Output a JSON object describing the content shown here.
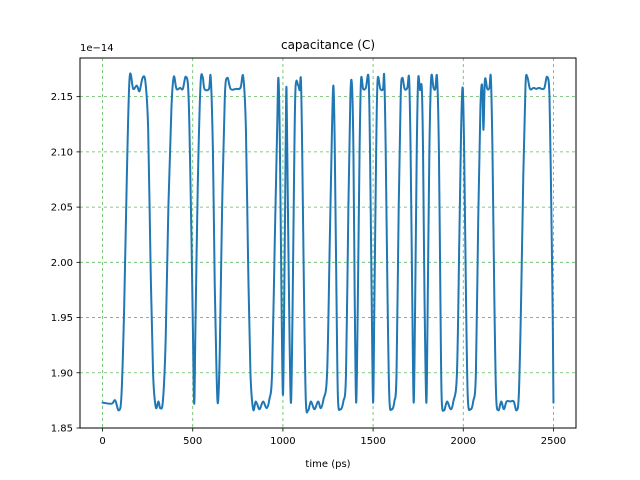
{
  "chart_data": {
    "type": "line",
    "title": "capacitance (C)",
    "xlabel": "time (ps)",
    "ylabel": "",
    "offset_label": "1e−14",
    "xlim": [
      -125,
      2625
    ],
    "ylim": [
      1.85,
      2.185
    ],
    "xticks": [
      0,
      500,
      1000,
      1500,
      2000,
      2500
    ],
    "xtick_labels": [
      "0",
      "500",
      "1000",
      "1500",
      "2000",
      "2500"
    ],
    "yticks": [
      1.85,
      1.9,
      1.95,
      2.0,
      2.05,
      2.1,
      2.15
    ],
    "ytick_labels": [
      "1.85",
      "1.90",
      "1.95",
      "2.00",
      "2.05",
      "2.10",
      "2.15"
    ],
    "grid": true,
    "grid_color": "#2ca02c",
    "line_color": "#1f77b4",
    "series": [
      {
        "values": [
          [
            0,
            1.873
          ],
          [
            50,
            1.872
          ],
          [
            70,
            1.875
          ],
          [
            90,
            1.866
          ],
          [
            105,
            1.88
          ],
          [
            120,
            1.96
          ],
          [
            135,
            2.08
          ],
          [
            150,
            2.167
          ],
          [
            170,
            2.157
          ],
          [
            190,
            2.16
          ],
          [
            205,
            2.155
          ],
          [
            222,
            2.167
          ],
          [
            238,
            2.163
          ],
          [
            253,
            2.12
          ],
          [
            266,
            2.0
          ],
          [
            280,
            1.9
          ],
          [
            295,
            1.869
          ],
          [
            310,
            1.874
          ],
          [
            320,
            1.868
          ],
          [
            335,
            1.875
          ],
          [
            350,
            1.93
          ],
          [
            365,
            2.05
          ],
          [
            382,
            2.14
          ],
          [
            395,
            2.168
          ],
          [
            410,
            2.157
          ],
          [
            430,
            2.158
          ],
          [
            445,
            2.157
          ],
          [
            462,
            2.168
          ],
          [
            477,
            2.15
          ],
          [
            490,
            2.05
          ],
          [
            500,
            1.95
          ],
          [
            508,
            1.872
          ],
          [
            515,
            1.94
          ],
          [
            528,
            2.07
          ],
          [
            543,
            2.16
          ],
          [
            555,
            2.168
          ],
          [
            565,
            2.157
          ],
          [
            590,
            2.157
          ],
          [
            600,
            2.167
          ],
          [
            612,
            2.1
          ],
          [
            622,
            1.98
          ],
          [
            632,
            1.9
          ],
          [
            640,
            1.873
          ],
          [
            650,
            1.92
          ],
          [
            663,
            2.05
          ],
          [
            678,
            2.15
          ],
          [
            692,
            2.167
          ],
          [
            710,
            2.157
          ],
          [
            740,
            2.157
          ],
          [
            765,
            2.158
          ],
          [
            780,
            2.168
          ],
          [
            795,
            2.12
          ],
          [
            807,
            2.0
          ],
          [
            820,
            1.9
          ],
          [
            835,
            1.867
          ],
          [
            850,
            1.874
          ],
          [
            870,
            1.867
          ],
          [
            890,
            1.874
          ],
          [
            910,
            1.868
          ],
          [
            925,
            1.876
          ],
          [
            940,
            1.9
          ],
          [
            955,
            2.02
          ],
          [
            968,
            2.12
          ],
          [
            975,
            2.167
          ],
          [
            983,
            2.11
          ],
          [
            992,
            1.97
          ],
          [
            1000,
            1.88
          ],
          [
            1007,
            1.96
          ],
          [
            1015,
            2.1
          ],
          [
            1020,
            2.158
          ],
          [
            1027,
            2.06
          ],
          [
            1037,
            1.93
          ],
          [
            1045,
            1.873
          ],
          [
            1053,
            1.95
          ],
          [
            1062,
            2.08
          ],
          [
            1070,
            2.158
          ],
          [
            1085,
            2.16
          ],
          [
            1093,
            2.156
          ],
          [
            1100,
            2.165
          ],
          [
            1107,
            2.1
          ],
          [
            1117,
            1.97
          ],
          [
            1127,
            1.875
          ],
          [
            1140,
            1.866
          ],
          [
            1155,
            1.874
          ],
          [
            1175,
            1.867
          ],
          [
            1195,
            1.874
          ],
          [
            1210,
            1.868
          ],
          [
            1225,
            1.876
          ],
          [
            1245,
            1.9
          ],
          [
            1260,
            2.02
          ],
          [
            1272,
            2.12
          ],
          [
            1280,
            2.16
          ],
          [
            1287,
            2.11
          ],
          [
            1297,
            1.97
          ],
          [
            1305,
            1.878
          ],
          [
            1318,
            1.867
          ],
          [
            1335,
            1.874
          ],
          [
            1350,
            1.9
          ],
          [
            1363,
            2.05
          ],
          [
            1374,
            2.15
          ],
          [
            1383,
            2.16
          ],
          [
            1391,
            2.1
          ],
          [
            1398,
            1.97
          ],
          [
            1406,
            1.873
          ],
          [
            1415,
            1.96
          ],
          [
            1425,
            2.1
          ],
          [
            1433,
            2.165
          ],
          [
            1445,
            2.157
          ],
          [
            1460,
            2.158
          ],
          [
            1475,
            2.167
          ],
          [
            1483,
            2.1
          ],
          [
            1492,
            1.97
          ],
          [
            1500,
            1.873
          ],
          [
            1507,
            1.96
          ],
          [
            1517,
            2.1
          ],
          [
            1525,
            2.165
          ],
          [
            1540,
            2.157
          ],
          [
            1555,
            2.157
          ],
          [
            1562,
            2.168
          ],
          [
            1570,
            2.1
          ],
          [
            1580,
            1.97
          ],
          [
            1590,
            1.878
          ],
          [
            1603,
            1.867
          ],
          [
            1618,
            1.874
          ],
          [
            1630,
            1.9
          ],
          [
            1642,
            2.05
          ],
          [
            1653,
            2.15
          ],
          [
            1662,
            2.167
          ],
          [
            1675,
            2.157
          ],
          [
            1690,
            2.158
          ],
          [
            1700,
            2.166
          ],
          [
            1708,
            2.1
          ],
          [
            1717,
            1.97
          ],
          [
            1725,
            1.873
          ],
          [
            1733,
            1.96
          ],
          [
            1742,
            2.1
          ],
          [
            1750,
            2.166
          ],
          [
            1760,
            2.156
          ],
          [
            1770,
            2.158
          ],
          [
            1777,
            2.1
          ],
          [
            1785,
            1.97
          ],
          [
            1795,
            1.873
          ],
          [
            1802,
            1.95
          ],
          [
            1812,
            2.1
          ],
          [
            1822,
            2.167
          ],
          [
            1835,
            2.158
          ],
          [
            1845,
            2.157
          ],
          [
            1855,
            2.167
          ],
          [
            1865,
            2.1
          ],
          [
            1873,
            1.97
          ],
          [
            1880,
            1.878
          ],
          [
            1893,
            1.866
          ],
          [
            1910,
            1.874
          ],
          [
            1930,
            1.867
          ],
          [
            1945,
            1.874
          ],
          [
            1965,
            1.9
          ],
          [
            1978,
            2.02
          ],
          [
            1988,
            2.12
          ],
          [
            1997,
            2.158
          ],
          [
            2005,
            2.1
          ],
          [
            2015,
            1.97
          ],
          [
            2025,
            1.878
          ],
          [
            2040,
            1.867
          ],
          [
            2055,
            1.874
          ],
          [
            2070,
            1.9
          ],
          [
            2083,
            2.04
          ],
          [
            2095,
            2.14
          ],
          [
            2105,
            2.16
          ],
          [
            2112,
            2.12
          ],
          [
            2120,
            2.165
          ],
          [
            2133,
            2.157
          ],
          [
            2145,
            2.158
          ],
          [
            2153,
            2.167
          ],
          [
            2162,
            2.1
          ],
          [
            2172,
            1.97
          ],
          [
            2182,
            1.88
          ],
          [
            2195,
            1.866
          ],
          [
            2210,
            1.874
          ],
          [
            2225,
            1.867
          ],
          [
            2240,
            1.874
          ],
          [
            2260,
            1.874
          ],
          [
            2280,
            1.874
          ],
          [
            2295,
            1.866
          ],
          [
            2308,
            1.88
          ],
          [
            2320,
            1.96
          ],
          [
            2333,
            2.08
          ],
          [
            2345,
            2.16
          ],
          [
            2355,
            2.168
          ],
          [
            2370,
            2.157
          ],
          [
            2390,
            2.158
          ],
          [
            2405,
            2.157
          ],
          [
            2420,
            2.158
          ],
          [
            2435,
            2.157
          ],
          [
            2450,
            2.158
          ],
          [
            2465,
            2.168
          ],
          [
            2478,
            2.15
          ],
          [
            2488,
            2.05
          ],
          [
            2496,
            1.95
          ],
          [
            2500,
            1.873
          ]
        ]
      }
    ]
  }
}
